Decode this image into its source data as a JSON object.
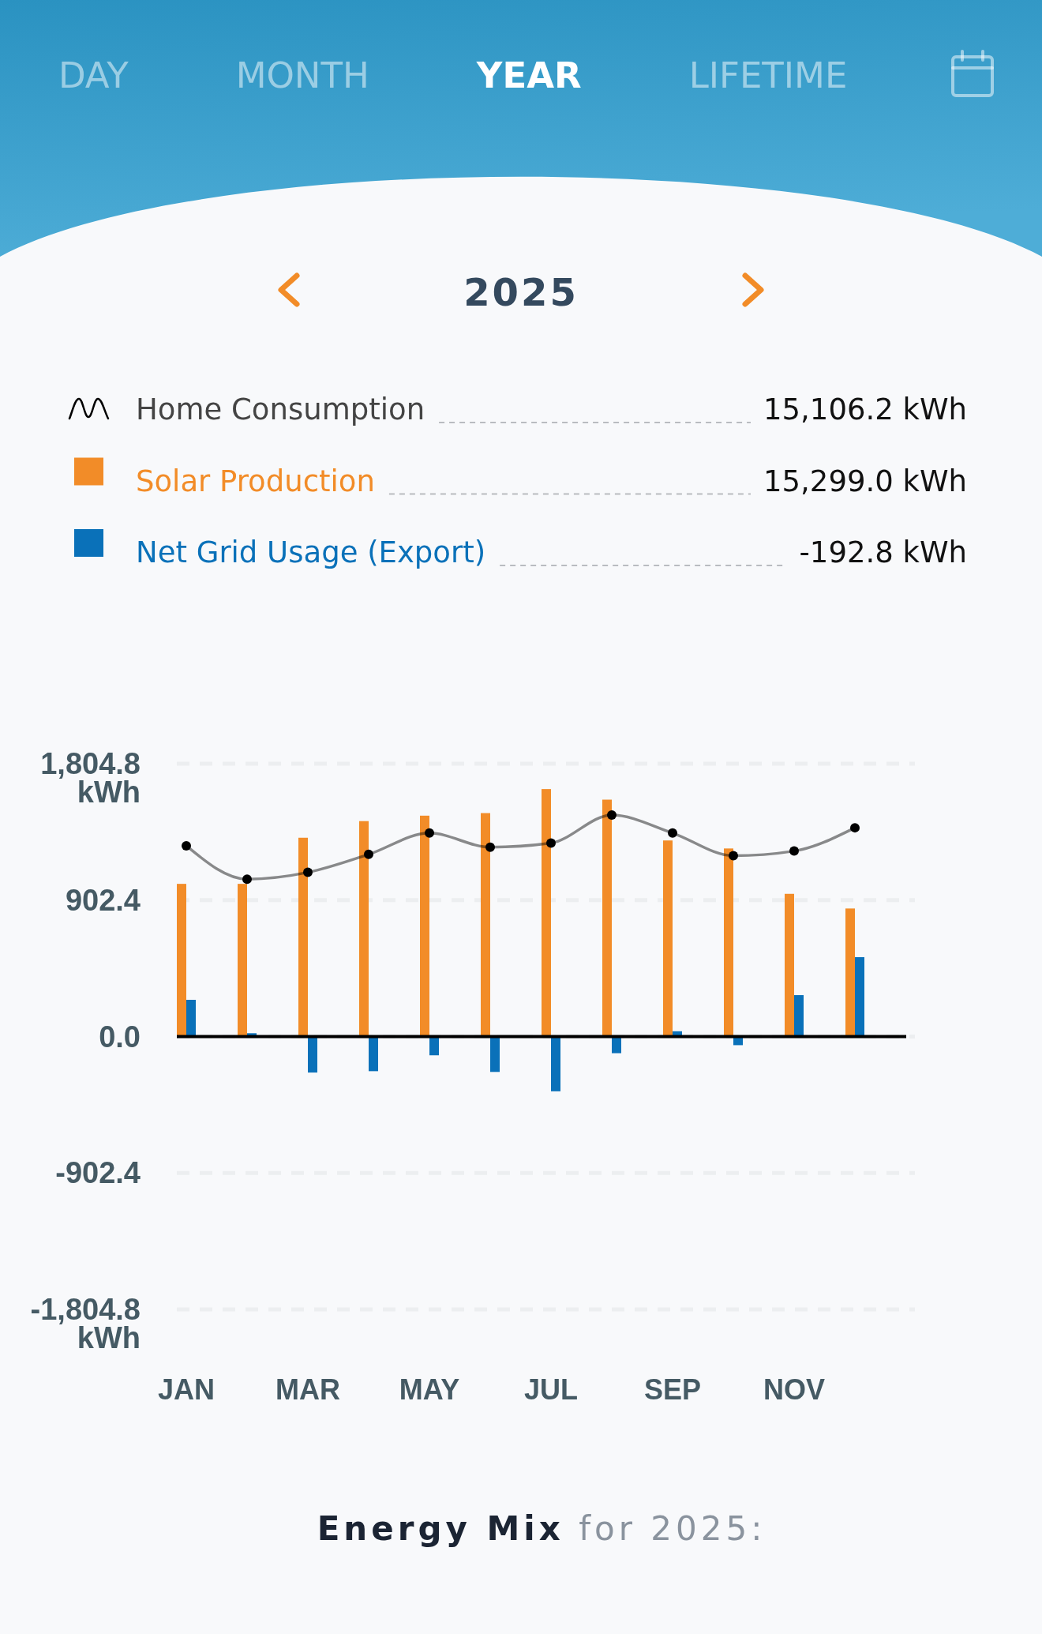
{
  "chart_data": {
    "type": "bar",
    "title": "2025",
    "categories": [
      "JAN",
      null,
      "MAR",
      null,
      "MAY",
      null,
      "JUL",
      null,
      "SEP",
      null,
      "NOV",
      null
    ],
    "series": [
      {
        "name": "Home Consumption",
        "type": "line",
        "color": "#000000",
        "values": [
          1262,
          1041,
          1086,
          1205,
          1346,
          1253,
          1280,
          1465,
          1346,
          1196,
          1227,
          1381
        ]
      },
      {
        "name": "Solar Production",
        "color": "#f28c28",
        "values": [
          1010,
          1010,
          1315,
          1425,
          1461,
          1478,
          1637,
          1567,
          1297,
          1244,
          944,
          847
        ]
      },
      {
        "name": "Net Grid Usage (Export)",
        "color": "#0a71b9",
        "values": [
          243,
          22,
          -238,
          -229,
          -124,
          -234,
          -362,
          -110,
          35,
          -57,
          274,
          525
        ]
      }
    ],
    "ylim": [
      -1804.8,
      1804.8
    ],
    "yticks": [
      {
        "value": -1804.8,
        "label": "-1,804.8 kWh"
      },
      -902.4,
      {
        "value": 0,
        "label": "0.0"
      },
      902.4,
      {
        "value": 1804.8,
        "label": "1,804.8 kWh"
      }
    ],
    "grid": "y",
    "legend": "top",
    "marker": "circle",
    "line_style": "solid",
    "annotations": [
      "DAY",
      "MONTH",
      "YEAR",
      "LIFETIME",
      "15,106.2 kWh",
      "15,299.0 kWh",
      "-192.8 kWh",
      "Energy Mix for 2025:"
    ]
  }
}
